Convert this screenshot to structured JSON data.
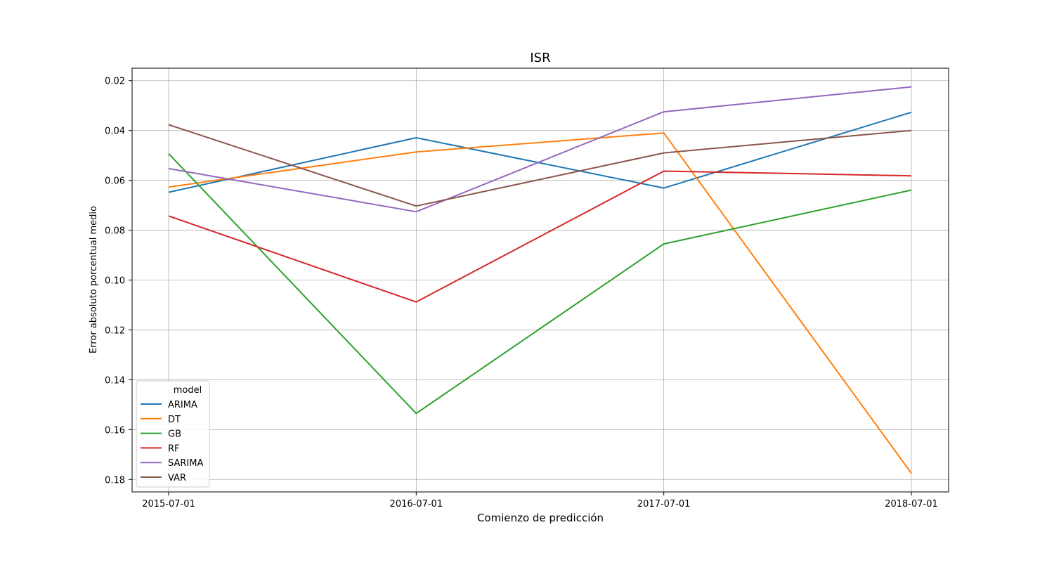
{
  "chart_data": {
    "type": "line",
    "title": "ISR",
    "xlabel": "Comienzo de predicción",
    "ylabel": "Error absoluto porcentual medio",
    "x": [
      "2015-07-01",
      "2016-07-01",
      "2017-07-01",
      "2018-07-01"
    ],
    "y_inverted": true,
    "ylim": [
      0.185,
      0.015
    ],
    "yticks": [
      0.02,
      0.04,
      0.06,
      0.08,
      0.1,
      0.12,
      0.14,
      0.16,
      0.18
    ],
    "ytick_labels": [
      "0.02",
      "0.04",
      "0.06",
      "0.08",
      "0.10",
      "0.12",
      "0.14",
      "0.16",
      "0.18"
    ],
    "grid": true,
    "legend": {
      "title": "model",
      "placement": "bottom-left"
    },
    "series": [
      {
        "name": "ARIMA",
        "color": "#1f77b4",
        "values": [
          0.0648,
          0.0429,
          0.0631,
          0.0327
        ]
      },
      {
        "name": "DT",
        "color": "#ff7f0e",
        "values": [
          0.0627,
          0.0486,
          0.041,
          0.1775
        ]
      },
      {
        "name": "GB",
        "color": "#2ca02c",
        "values": [
          0.0493,
          0.1535,
          0.0855,
          0.0639
        ]
      },
      {
        "name": "RF",
        "color": "#d62728",
        "values": [
          0.0743,
          0.1088,
          0.0563,
          0.0582
        ]
      },
      {
        "name": "SARIMA",
        "color": "#9467bd",
        "values": [
          0.0553,
          0.0726,
          0.0325,
          0.0225
        ]
      },
      {
        "name": "VAR",
        "color": "#8c564b",
        "values": [
          0.0377,
          0.0703,
          0.049,
          0.04
        ]
      }
    ]
  }
}
